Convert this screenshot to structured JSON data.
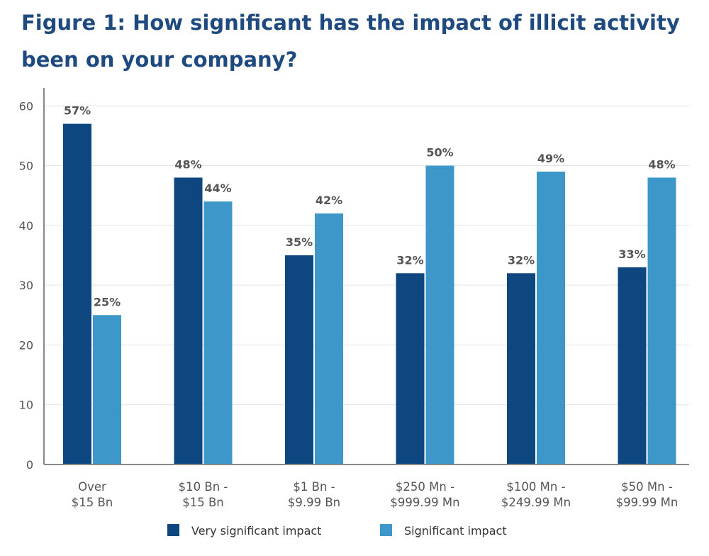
{
  "title": "Figure 1: How significant has the impact of illicit activity been on your company?",
  "colors": {
    "very": "#0e4680",
    "significant": "#3d97c8",
    "grid": "#e3e3e3",
    "axis": "#888888"
  },
  "chart_data": {
    "type": "bar",
    "title": "Figure 1: How significant has the impact of illicit activity been on your company?",
    "categories": [
      [
        "Over",
        "$15 Bn"
      ],
      [
        "$10 Bn -",
        "$15 Bn"
      ],
      [
        "$1 Bn -",
        "$9.99 Bn"
      ],
      [
        "$250 Mn -",
        "$999.99 Mn"
      ],
      [
        "$100 Mn -",
        "$249.99 Mn"
      ],
      [
        "$50 Mn -",
        "$99.99 Mn"
      ]
    ],
    "series": [
      {
        "name": "Very significant impact",
        "values": [
          57,
          48,
          35,
          32,
          32,
          33
        ],
        "labels": [
          "57%",
          "48%",
          "35%",
          "32%",
          "32%",
          "33%"
        ]
      },
      {
        "name": "Significant impact",
        "values": [
          25,
          44,
          42,
          50,
          49,
          48
        ],
        "labels": [
          "25%",
          "44%",
          "42%",
          "50%",
          "49%",
          "48%"
        ]
      }
    ],
    "yticks": [
      0,
      10,
      20,
      30,
      40,
      50,
      60
    ],
    "ylim": [
      0,
      63
    ],
    "grid": true,
    "legend": "bottom"
  }
}
